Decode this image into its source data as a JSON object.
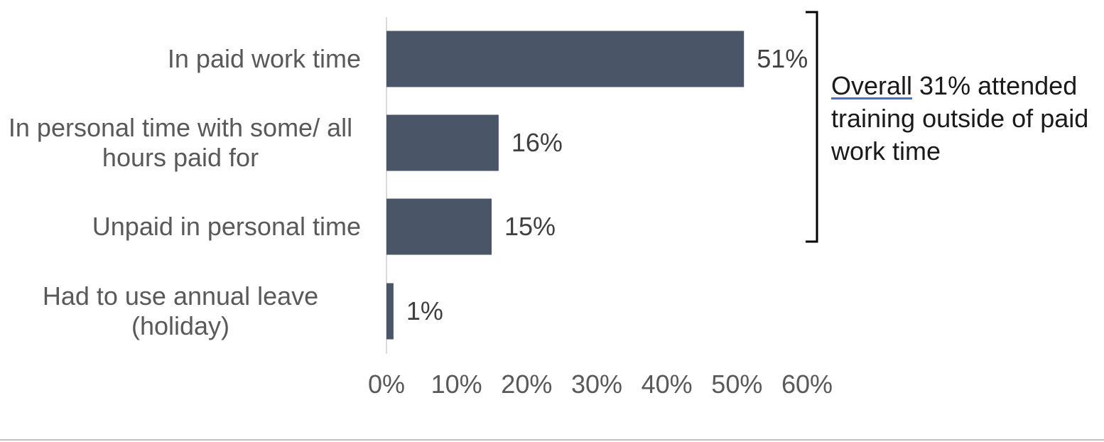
{
  "chart_data": {
    "type": "bar",
    "orientation": "horizontal",
    "categories": [
      [
        "In paid work time"
      ],
      [
        "In personal time with some/ all",
        "hours paid for"
      ],
      [
        "Unpaid in personal time"
      ],
      [
        "Had to use annual leave",
        "(holiday)"
      ]
    ],
    "values": [
      51,
      16,
      15,
      1
    ],
    "value_labels": [
      "51%",
      "16%",
      "15%",
      "1%"
    ],
    "xlim": [
      0,
      60
    ],
    "x_ticks": [
      "0%",
      "10%",
      "20%",
      "30%",
      "40%",
      "50%",
      "60%"
    ],
    "grid": false,
    "bar_color": "#4a5568",
    "annotation": {
      "underlined": "Overall",
      "text": " 31% attended training outside of paid work time"
    }
  }
}
